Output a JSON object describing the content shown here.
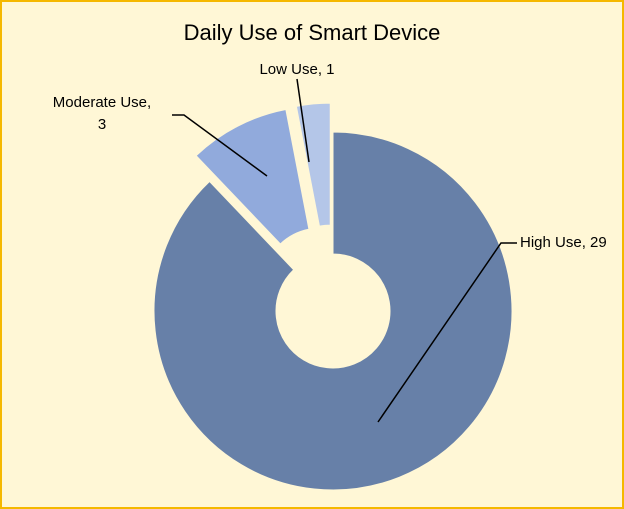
{
  "chart_data": {
    "type": "pie",
    "title": "Daily Use of Smart Device",
    "categories": [
      "High Use",
      "Moderate Use",
      "Low Use"
    ],
    "values": [
      29,
      3,
      1
    ],
    "label_texts": [
      [
        "High Use, 29"
      ],
      [
        "Moderate Use,",
        "3"
      ],
      [
        "Low Use, 1"
      ]
    ],
    "colors": [
      "#6780a8",
      "#91aadc",
      "#b4c6e8"
    ],
    "background": "#fff7d6",
    "border_color": "#f5b800",
    "donut": true,
    "exploded": [
      "Moderate Use",
      "Low Use"
    ],
    "legend": "none"
  }
}
